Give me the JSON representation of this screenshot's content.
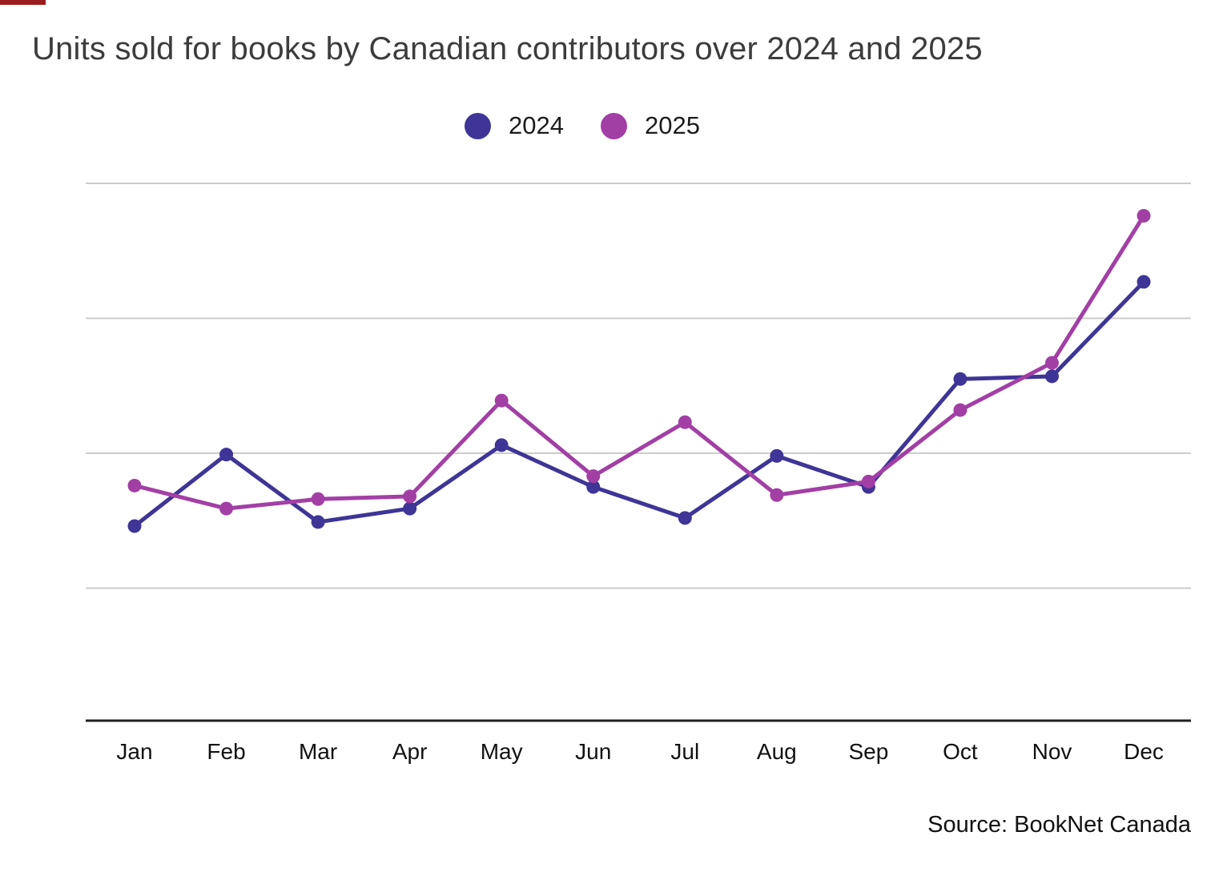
{
  "page": {
    "background": "#ffffff",
    "artifact_color": "#9b1c1c",
    "source": "Source: BookNet Canada"
  },
  "legend": {
    "items": [
      {
        "label": "2024",
        "color": "#3e3596"
      },
      {
        "label": "2025",
        "color": "#a23fa5"
      }
    ]
  },
  "chart_data": {
    "type": "line",
    "title": "Units sold for books by Canadian contributors over 2024 and 2025",
    "categories": [
      "Jan",
      "Feb",
      "Mar",
      "Apr",
      "May",
      "Jun",
      "Jul",
      "Aug",
      "Sep",
      "Oct",
      "Nov",
      "Dec"
    ],
    "series": [
      {
        "name": "2024",
        "color": "#3e3596",
        "values": [
          1.46,
          1.99,
          1.49,
          1.59,
          2.06,
          1.75,
          1.52,
          1.98,
          1.75,
          2.55,
          2.57,
          3.27
        ]
      },
      {
        "name": "2025",
        "color": "#a23fa5",
        "values": [
          1.76,
          1.59,
          1.66,
          1.68,
          2.39,
          1.83,
          2.23,
          1.69,
          1.79,
          2.32,
          2.67,
          3.76
        ]
      }
    ],
    "xlabel": "",
    "ylabel": "",
    "ylim": [
      0,
      4.3
    ],
    "gridlines_at": [
      1,
      2,
      3,
      4
    ],
    "grid": "horizontal-only",
    "y_axis_tick_labels_visible": false,
    "value_units": "relative gridline units (no y-axis labels shown in chart)",
    "legend_position": "top-center",
    "source": "Source: BookNet Canada",
    "style": {
      "gridline_color": "#cccccc",
      "axis_line_color": "#1f1f1f",
      "tick_label_color": "#111111",
      "title_color": "#3c3c3c",
      "line_width": 5,
      "point_radius": 8.5
    }
  }
}
